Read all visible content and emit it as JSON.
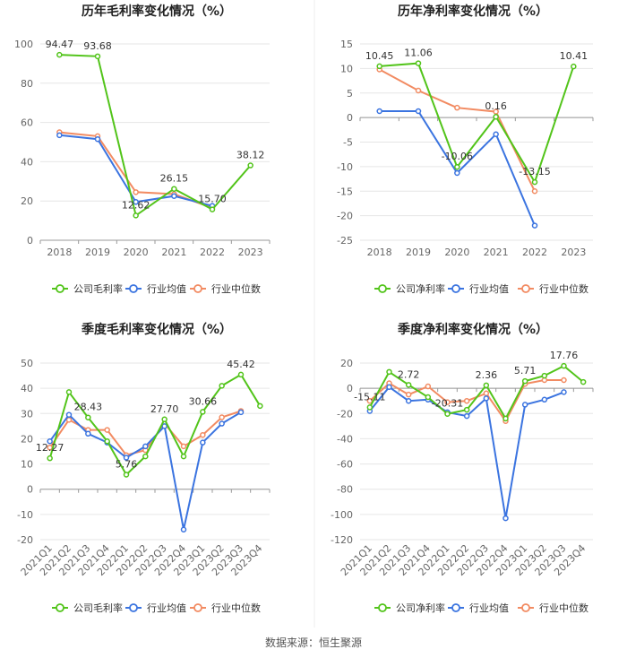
{
  "source_text": "数据来源：恒生聚源",
  "colors": {
    "company": "#52c41a",
    "avg": "#3b74e0",
    "median": "#f28b62",
    "grid": "#e6e6e6",
    "axis": "#999999",
    "tick_text": "#666666",
    "title": "#222222"
  },
  "chart_data": [
    {
      "type": "line",
      "title": "历年毛利率变化情况（%）",
      "categories": [
        "2018",
        "2019",
        "2020",
        "2021",
        "2022",
        "2023"
      ],
      "ylim": [
        0,
        100
      ],
      "yticks": [
        0,
        20,
        40,
        60,
        80,
        100
      ],
      "series": [
        {
          "name": "公司毛利率",
          "role": "company",
          "values": [
            94.47,
            93.68,
            12.62,
            26.15,
            15.7,
            38.12
          ],
          "labels": [
            "94.47",
            "93.68",
            "12.62",
            "26.15",
            "15.70",
            "38.12"
          ]
        },
        {
          "name": "行业均值",
          "role": "avg",
          "values": [
            53.5,
            51.5,
            19.5,
            22.5,
            17.5,
            null
          ]
        },
        {
          "name": "行业中位数",
          "role": "median",
          "values": [
            55.0,
            53.0,
            24.5,
            23.5,
            16.5,
            null
          ]
        }
      ]
    },
    {
      "type": "line",
      "title": "历年净利率变化情况（%）",
      "categories": [
        "2018",
        "2019",
        "2020",
        "2021",
        "2022",
        "2023"
      ],
      "ylim": [
        -25,
        15
      ],
      "yticks": [
        -25,
        -20,
        -15,
        -10,
        -5,
        0,
        5,
        10,
        15
      ],
      "series": [
        {
          "name": "公司净利率",
          "role": "company",
          "values": [
            10.45,
            11.06,
            -10.06,
            0.16,
            -13.15,
            10.41
          ],
          "labels": [
            "10.45",
            "11.06",
            "-10.06",
            "0.16",
            "-13.15",
            "10.41"
          ]
        },
        {
          "name": "行业均值",
          "role": "avg",
          "values": [
            1.3,
            1.3,
            -11.3,
            -3.4,
            -22.0,
            null
          ]
        },
        {
          "name": "行业中位数",
          "role": "median",
          "values": [
            9.8,
            5.5,
            2.0,
            1.2,
            -15.0,
            null
          ]
        }
      ]
    },
    {
      "type": "line",
      "title": "季度毛利率变化情况（%）",
      "categories": [
        "2021Q1",
        "2021Q2",
        "2021Q3",
        "2021Q4",
        "2022Q1",
        "2022Q2",
        "2022Q3",
        "2022Q4",
        "2023Q1",
        "2023Q2",
        "2023Q3",
        "2023Q4"
      ],
      "ylim": [
        -20,
        50
      ],
      "yticks": [
        -20,
        -10,
        0,
        10,
        20,
        30,
        40,
        50
      ],
      "series": [
        {
          "name": "公司毛利率",
          "role": "company",
          "values": [
            12.27,
            38.5,
            28.43,
            19.0,
            5.76,
            13.0,
            27.7,
            13.0,
            30.66,
            41.0,
            45.42,
            33.0
          ],
          "labels": [
            "12.27",
            "",
            "28.43",
            "",
            "5.76",
            "",
            "27.70",
            "",
            "30.66",
            "",
            "45.42",
            ""
          ]
        },
        {
          "name": "行业均值",
          "role": "avg",
          "values": [
            19.0,
            29.5,
            22.0,
            18.5,
            12.5,
            17.0,
            25.0,
            -16.0,
            18.5,
            26.0,
            30.5,
            null
          ]
        },
        {
          "name": "行业中位数",
          "role": "median",
          "values": [
            16.5,
            27.5,
            23.5,
            23.5,
            13.5,
            15.5,
            26.0,
            17.0,
            21.5,
            28.5,
            31.0,
            null
          ]
        }
      ]
    },
    {
      "type": "line",
      "title": "季度净利率变化情况（%）",
      "categories": [
        "2021Q1",
        "2021Q2",
        "2021Q3",
        "2021Q4",
        "2022Q1",
        "2022Q2",
        "2022Q3",
        "2022Q4",
        "2023Q1",
        "2023Q2",
        "2023Q3",
        "2023Q4"
      ],
      "ylim": [
        -120,
        20
      ],
      "yticks": [
        -120,
        -100,
        -80,
        -60,
        -40,
        -20,
        0,
        20
      ],
      "series": [
        {
          "name": "公司净利率",
          "role": "company",
          "values": [
            -15.11,
            13.0,
            2.72,
            -7.0,
            -20.31,
            -17.0,
            2.36,
            -24.0,
            5.71,
            10.0,
            17.76,
            5.0
          ],
          "labels": [
            "-15.11",
            "",
            "2.72",
            "",
            "-20.31",
            "",
            "2.36",
            "",
            "5.71",
            "",
            "17.76",
            ""
          ]
        },
        {
          "name": "行业均值",
          "role": "avg",
          "values": [
            -18.0,
            1.0,
            -10.0,
            -9.0,
            -19.0,
            -22.0,
            -8.0,
            -103.0,
            -13.0,
            -9.0,
            -3.0,
            null
          ]
        },
        {
          "name": "行业中位数",
          "role": "median",
          "values": [
            -10.0,
            4.0,
            -5.0,
            1.5,
            -11.0,
            -10.0,
            -4.0,
            -26.0,
            3.5,
            6.5,
            6.5,
            null
          ]
        }
      ]
    }
  ]
}
